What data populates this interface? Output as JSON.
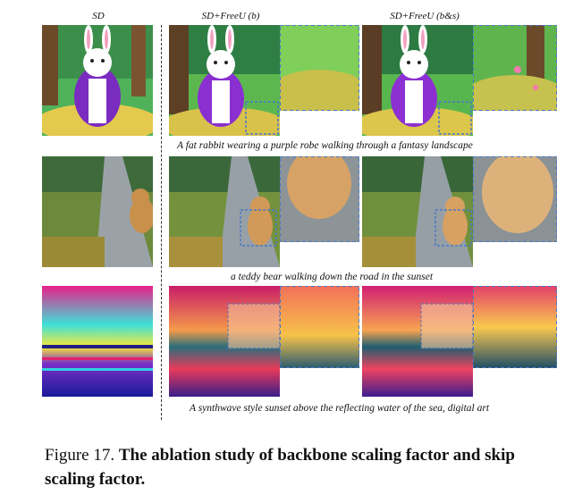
{
  "columns": {
    "sd": "SD",
    "freeu_b": "SD+FreeU (b)",
    "freeu_bs": "SD+FreeU (b&s)"
  },
  "rows": [
    {
      "prompt": "A fat rabbit wearing a purple robe walking through a fantasy landscape"
    },
    {
      "prompt": "a teddy bear walking down the road in the sunset"
    },
    {
      "prompt": "A synthwave style sunset above the reflecting water of the sea, digital art"
    }
  ],
  "figure_caption": {
    "label": "Figure 17.",
    "title": "The ablation study of backbone scaling factor and skip scaling factor."
  },
  "colors": {
    "zoom_box": "#4a78c8",
    "divider": "#333333"
  }
}
